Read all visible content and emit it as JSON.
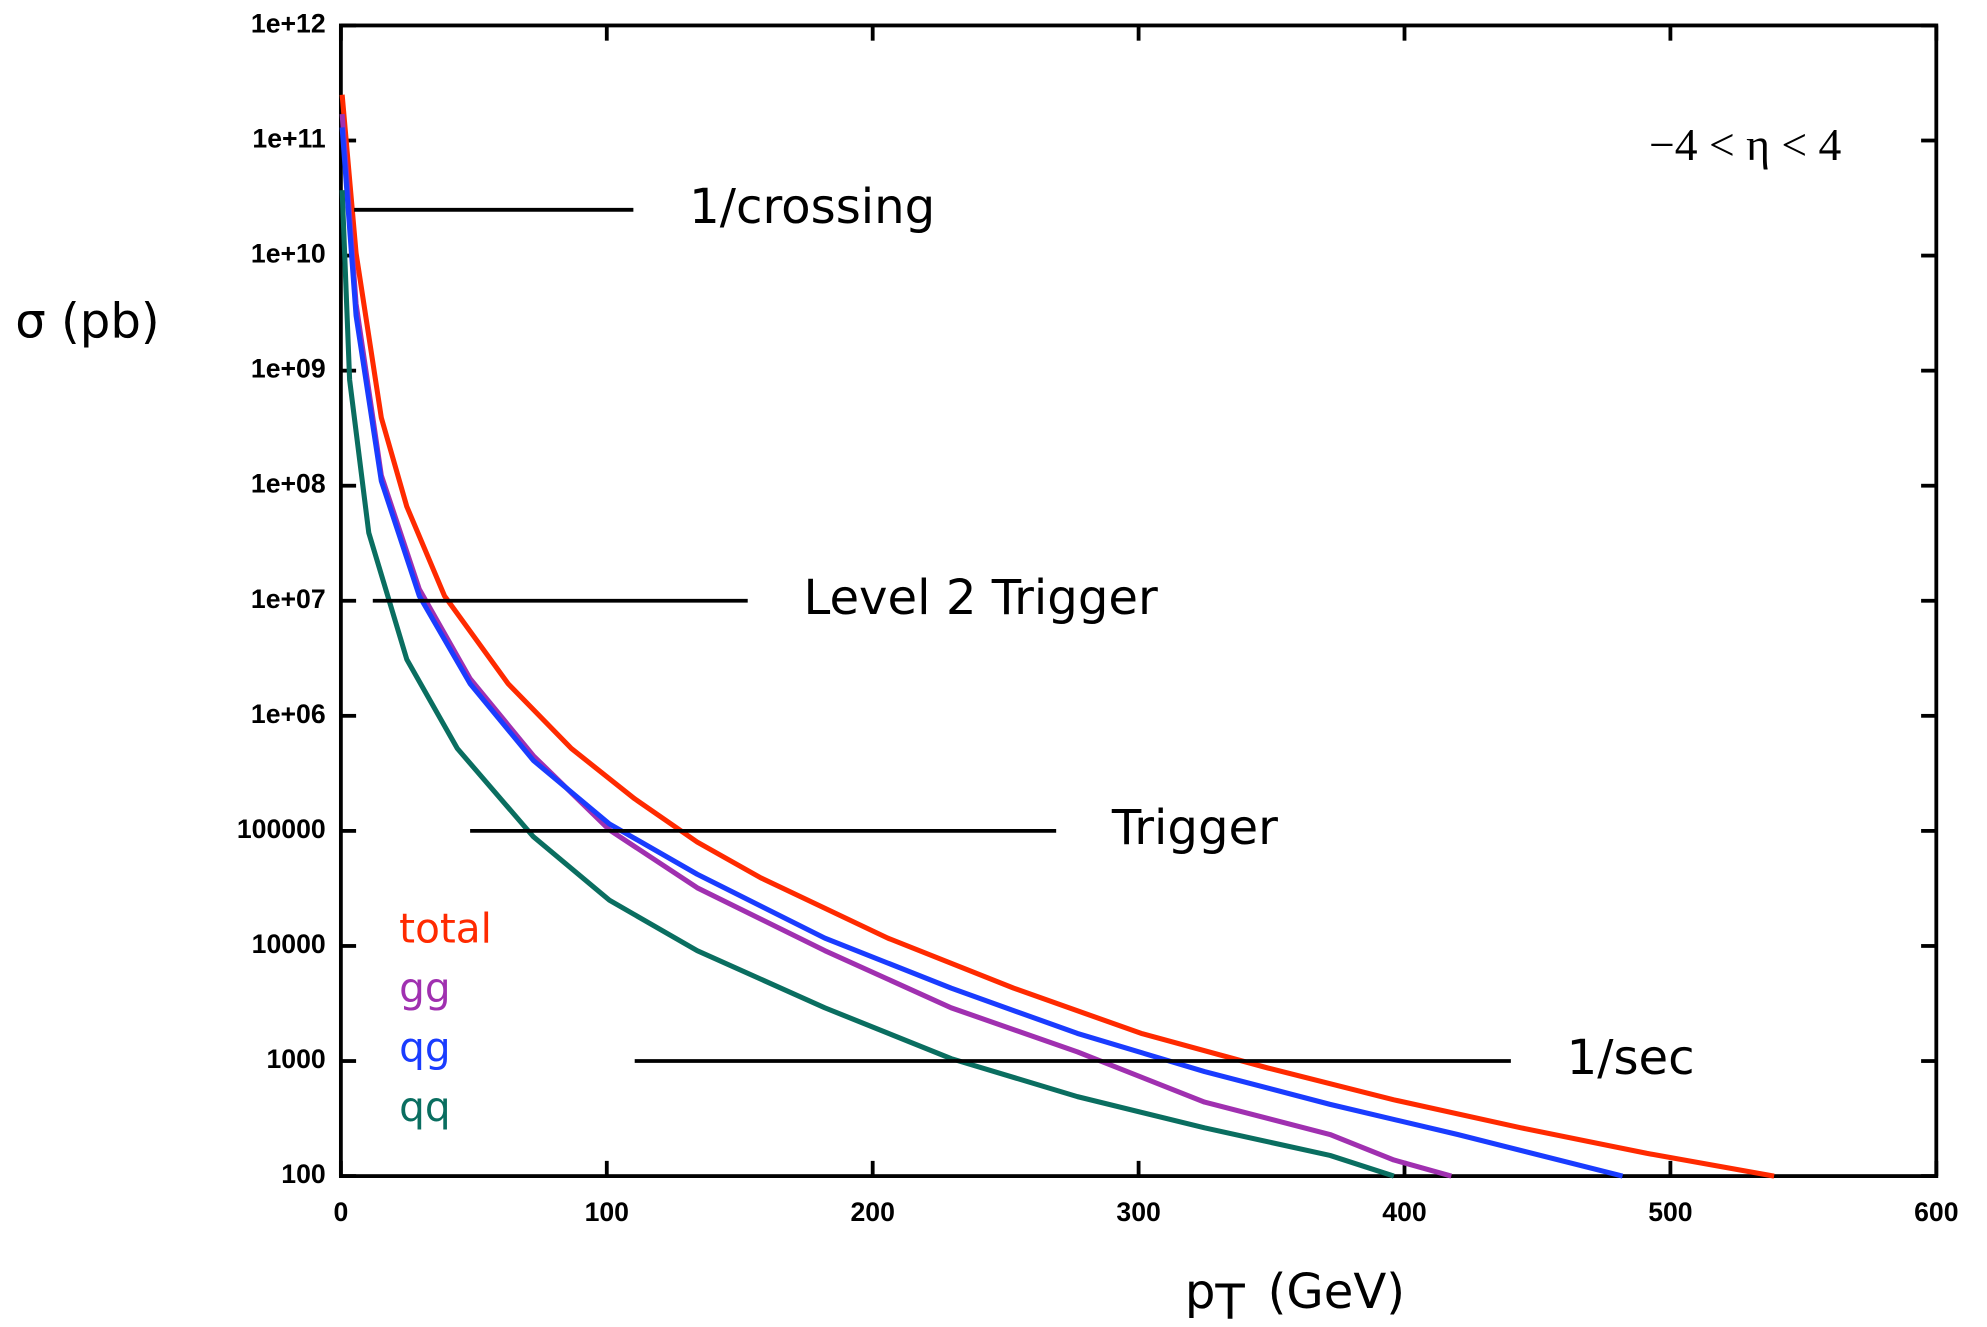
{
  "chart_data": {
    "type": "line",
    "y_label": "σ (pb)",
    "x_label": "p",
    "x_label_sub": "T",
    "x_label_unit": "(GeV)",
    "annotation": "−4 < η < 4",
    "log_y": true,
    "xlim": [
      0,
      600
    ],
    "xticks": [
      0,
      100,
      200,
      300,
      400,
      500,
      600
    ],
    "ylim": [
      100,
      1000000000000.0
    ],
    "yticks": [
      {
        "value": 1000000000000.0,
        "label": "1e+12"
      },
      {
        "value": 100000000000.0,
        "label": "1e+11"
      },
      {
        "value": 10000000000.0,
        "label": "1e+10"
      },
      {
        "value": 1000000000.0,
        "label": "1e+09"
      },
      {
        "value": 100000000.0,
        "label": "1e+08"
      },
      {
        "value": 10000000.0,
        "label": "1e+07"
      },
      {
        "value": 1000000.0,
        "label": "1e+06"
      },
      100000,
      10000,
      1000,
      100
    ],
    "series": [
      {
        "name": "total",
        "color": "#ff2a00",
        "x": [
          0.5,
          5.7,
          15.2,
          24.8,
          39,
          62.9,
          86.7,
          110.5,
          134,
          158,
          205.7,
          253,
          301,
          348.6,
          396,
          443.8,
          491,
          539
        ],
        "values": [
          250000000000.0,
          10500000000.0,
          390000000.0,
          66000000.0,
          11000000.0,
          1900000.0,
          520000.0,
          190000.0,
          80000.0,
          39000.0,
          11700.0,
          4300,
          1740,
          870,
          460,
          263,
          158,
          100
        ]
      },
      {
        "name": "gg",
        "color": "#a030b0",
        "x": [
          0.5,
          5.7,
          15.2,
          29.5,
          48.6,
          72.4,
          101,
          134,
          182,
          229.5,
          277,
          324.8,
          372,
          396,
          417.6
        ],
        "values": [
          170000000000.0,
          3800000000.0,
          123000000.0,
          12600000.0,
          2100000.0,
          450000.0,
          102000.0,
          32000.0,
          9100,
          2900,
          1200,
          440,
          230,
          138,
          100
        ]
      },
      {
        "name": "qg",
        "color": "#1a3cff",
        "x": [
          0.5,
          5.7,
          15.2,
          29.5,
          48.6,
          72.4,
          101,
          134,
          182,
          229.5,
          277,
          324.8,
          372,
          420,
          482
        ],
        "values": [
          130000000000.0,
          3000000000.0,
          110000000.0,
          11000000.0,
          1900000.0,
          410000.0,
          115000.0,
          42000.0,
          11700.0,
          4300,
          1740,
          810,
          420,
          230,
          100
        ]
      },
      {
        "name": "qq",
        "color": "#0a6e60",
        "x": [
          0.5,
          3.3,
          10.5,
          24.8,
          43.8,
          72.4,
          101,
          134,
          182,
          229.5,
          277,
          324.8,
          372,
          396
        ],
        "values": [
          37000000000.0,
          830000000.0,
          39000000.0,
          3100000.0,
          520000.0,
          89000.0,
          25000.0,
          9100,
          2900,
          1050,
          490,
          263,
          151,
          100
        ]
      }
    ],
    "thresholds": [
      {
        "label": "1/crossing",
        "value": 25000000000.0,
        "x": [
          5,
          110
        ]
      },
      {
        "label": "Level 2 Trigger",
        "value": 10000000.0,
        "x": [
          12,
          153
        ]
      },
      {
        "label": "Trigger",
        "value": 100000,
        "x": [
          48.6,
          269
        ]
      },
      {
        "label": "1/sec",
        "value": 1000,
        "x": [
          110.5,
          440
        ]
      }
    ]
  }
}
